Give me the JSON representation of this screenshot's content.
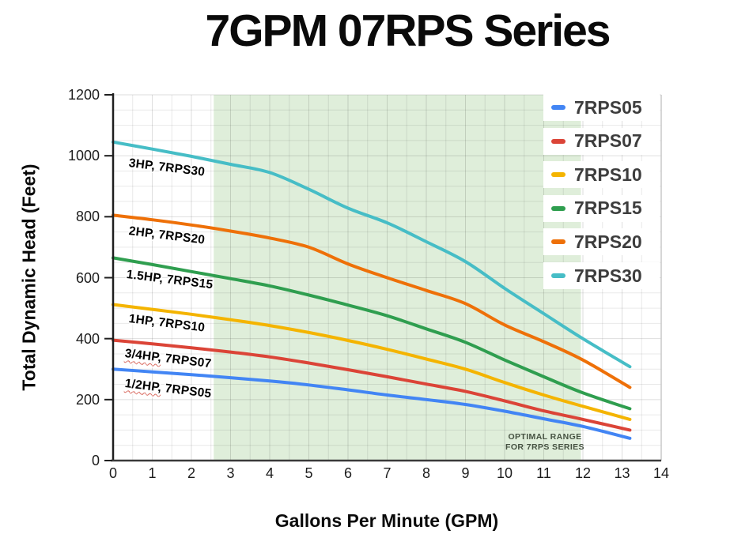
{
  "chart_data": {
    "type": "line",
    "title": "7GPM 07RPS Series",
    "xlabel": "Gallons Per Minute (GPM)",
    "ylabel": "Total Dynamic Head (Feet)",
    "xlim": [
      0,
      14
    ],
    "ylim": [
      0,
      1200
    ],
    "x_ticks": [
      0,
      1,
      2,
      3,
      4,
      5,
      6,
      7,
      8,
      9,
      10,
      11,
      12,
      13,
      14
    ],
    "y_ticks": [
      0,
      200,
      400,
      600,
      800,
      1000,
      1200
    ],
    "grid": {
      "x_step": 0.5,
      "y_step": 50,
      "on": true
    },
    "legend_position": "top-right-inside",
    "x": [
      0,
      1,
      2,
      3,
      4,
      5,
      6,
      7,
      8,
      9,
      10,
      11,
      12,
      13.2
    ],
    "series": [
      {
        "name": "7RPS05",
        "color": "#4285f4",
        "values": [
          300,
          291,
          282,
          272,
          261,
          248,
          232,
          215,
          200,
          184,
          162,
          137,
          112,
          73
        ]
      },
      {
        "name": "7RPS07",
        "color": "#db4437",
        "values": [
          395,
          383,
          370,
          356,
          340,
          320,
          298,
          275,
          251,
          227,
          196,
          163,
          135,
          100
        ]
      },
      {
        "name": "7RPS10",
        "color": "#f4b400",
        "values": [
          512,
          496,
          480,
          462,
          443,
          420,
          394,
          365,
          333,
          300,
          256,
          215,
          178,
          135
        ]
      },
      {
        "name": "7RPS15",
        "color": "#2f9e4f",
        "values": [
          665,
          643,
          620,
          597,
          573,
          543,
          510,
          475,
          432,
          388,
          330,
          275,
          222,
          170
        ]
      },
      {
        "name": "7RPS20",
        "color": "#ee7008",
        "values": [
          805,
          790,
          773,
          753,
          730,
          700,
          645,
          600,
          558,
          515,
          445,
          390,
          330,
          240
        ]
      },
      {
        "name": "7RPS30",
        "color": "#46bdc6",
        "values": [
          1045,
          1022,
          998,
          972,
          945,
          890,
          828,
          780,
          718,
          653,
          565,
          482,
          400,
          308
        ]
      }
    ],
    "annotations": [
      {
        "hp": "3HP,",
        "model": "7RPS30",
        "gpm": 0.42,
        "tdh": 998,
        "wavy": false
      },
      {
        "hp": "2HP,",
        "model": "7RPS20",
        "gpm": 0.42,
        "tdh": 775,
        "wavy": false
      },
      {
        "hp": "1.5HP,",
        "model": "7RPS15",
        "gpm": 0.36,
        "tdh": 632,
        "wavy": false
      },
      {
        "hp": "1HP,",
        "model": "7RPS10",
        "gpm": 0.42,
        "tdh": 487,
        "wavy": false
      },
      {
        "hp": "3/4HP,",
        "model": "7RPS07",
        "gpm": 0.32,
        "tdh": 372,
        "wavy": true
      },
      {
        "hp": "1/2HP,",
        "model": "7RPS05",
        "gpm": 0.32,
        "tdh": 276,
        "wavy": true
      }
    ],
    "optimal_range": {
      "x_start": 2.57,
      "x_end": 11.95,
      "fill": "#dfeeda",
      "label_line1": "OPTIMAL RANGE",
      "label_line2": "FOR 7RPS SERIES",
      "label_color": "#465242"
    },
    "axis_colors": {
      "y_axis": "#1f1f1f",
      "x_axis": "#3a3a3a",
      "right_border": "#c9c9c9"
    }
  }
}
